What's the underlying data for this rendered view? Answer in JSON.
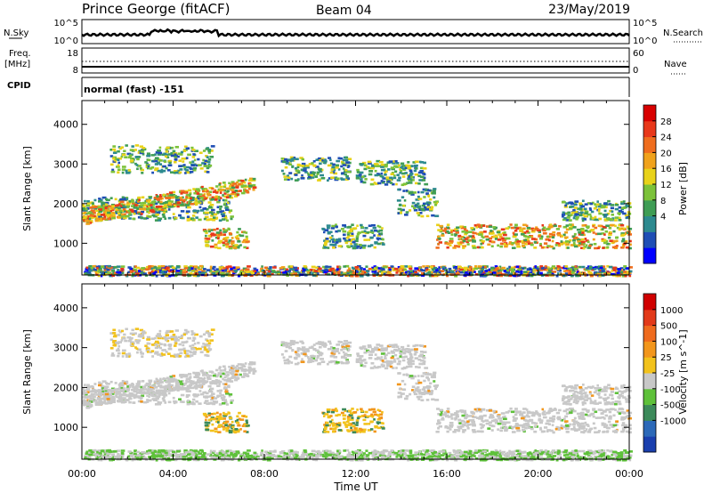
{
  "header": {
    "station": "Prince George (fitACF)",
    "beam": "Beam 04",
    "date": "23/May/2019"
  },
  "top_panels": {
    "nsky_label": "N.Sky",
    "nsky_ticks": [
      "10^5",
      "10^0"
    ],
    "nsearch_label": "N.Search",
    "nsearch_ticks": [
      "10^5",
      "10^0"
    ],
    "freq_label_1": "Freq.",
    "freq_label_2": "[MHz]",
    "freq_ticks": [
      "18",
      "8"
    ],
    "nave_label": "Nave",
    "nave_ticks": [
      "60",
      "0"
    ],
    "cpid_label": "CPID",
    "cpid_value": "normal (fast) -151"
  },
  "chart_data": [
    {
      "type": "heatmap",
      "name": "power",
      "ylabel": "Slant Range [km]",
      "ylim": [
        200,
        4600
      ],
      "yticks": [
        1000,
        2000,
        3000,
        4000
      ],
      "xlim": [
        0,
        24
      ],
      "colorbar": {
        "label": "Power [dB]",
        "ticks": [
          "28",
          "24",
          "20",
          "16",
          "12",
          "8",
          "4"
        ],
        "colors": [
          "#0000ff",
          "#1f4eb5",
          "#2d8a8f",
          "#3f9d55",
          "#7cc23a",
          "#e8d21a",
          "#f0a21c",
          "#ef6d1e",
          "#e8381a",
          "#d80000"
        ]
      }
    },
    {
      "type": "heatmap",
      "name": "velocity",
      "ylabel": "Slant Range [km]",
      "ylim": [
        200,
        4600
      ],
      "yticks": [
        1000,
        2000,
        3000,
        4000
      ],
      "xlim": [
        0,
        24
      ],
      "colorbar": {
        "label": "Velocity [m s^-1]",
        "ticks": [
          "1000",
          "500",
          "100",
          "25",
          "-25",
          "-100",
          "-500",
          "-1000"
        ],
        "colors": [
          "#1a3fae",
          "#2c69b8",
          "#3c8a5a",
          "#5ec13a",
          "#c8c8c8",
          "#f2c21c",
          "#f2961c",
          "#ef6b1e",
          "#e23a1a",
          "#d00000"
        ]
      }
    }
  ],
  "x_axis": {
    "ticks": [
      "00:00",
      "04:00",
      "08:00",
      "12:00",
      "16:00",
      "20:00",
      "00:00"
    ],
    "label": "Time UT"
  }
}
